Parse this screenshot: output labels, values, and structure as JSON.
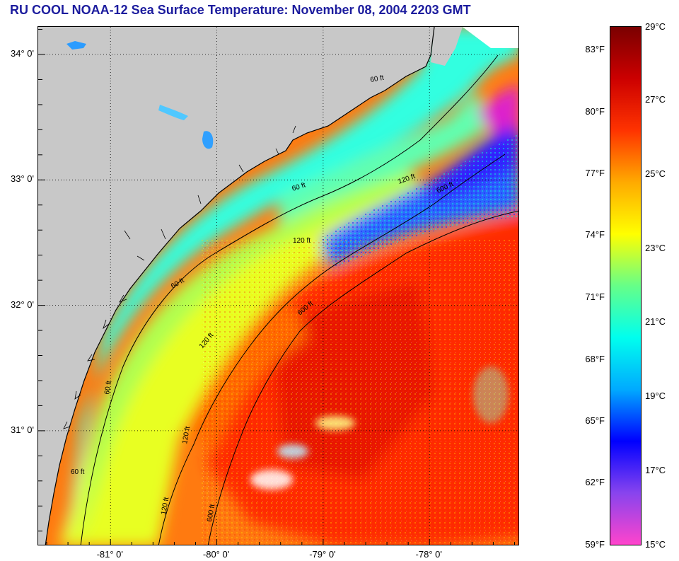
{
  "title": "RU COOL  NOAA-12  Sea Surface Temperature:  November 08, 2004 2203 GMT",
  "map": {
    "lat_labels": [
      {
        "text": "34° 0'",
        "lat": 34.0
      },
      {
        "text": "33° 0'",
        "lat": 33.0
      },
      {
        "text": "32° 0'",
        "lat": 32.0
      },
      {
        "text": "31° 0'",
        "lat": 31.0
      }
    ],
    "lon_labels": [
      {
        "text": "-81° 0'",
        "lon": -81.0
      },
      {
        "text": "-80° 0'",
        "lon": -80.0
      },
      {
        "text": "-79° 0'",
        "lon": -79.0
      },
      {
        "text": "-78° 0'",
        "lon": -78.0
      }
    ],
    "lat_range": [
      30.08,
      34.22
    ],
    "lon_range": [
      -81.68,
      -77.15
    ],
    "depth_contour_labels": [
      "60 ft",
      "60 ft",
      "60 ft",
      "60 ft",
      "60 ft",
      "120 ft",
      "120 ft",
      "120 ft",
      "120 ft",
      "120 ft",
      "600 ft",
      "600 ft",
      "600 ft"
    ],
    "land_color": "#c8c8c8",
    "grid": true
  },
  "colorbar": {
    "fahrenheit_labels": [
      "83°F",
      "80°F",
      "77°F",
      "74°F",
      "71°F",
      "68°F",
      "65°F",
      "62°F",
      "59°F"
    ],
    "celsius_labels": [
      "29°C",
      "27°C",
      "25°C",
      "23°C",
      "21°C",
      "19°C",
      "17°C",
      "15°C"
    ],
    "range_c": [
      15,
      29
    ],
    "colors": [
      "#ff44cc",
      "#8844ee",
      "#0000ff",
      "#00aaff",
      "#00ffee",
      "#66ff88",
      "#ffff00",
      "#ffaa00",
      "#ff3300",
      "#cc0000",
      "#7a0000"
    ]
  }
}
